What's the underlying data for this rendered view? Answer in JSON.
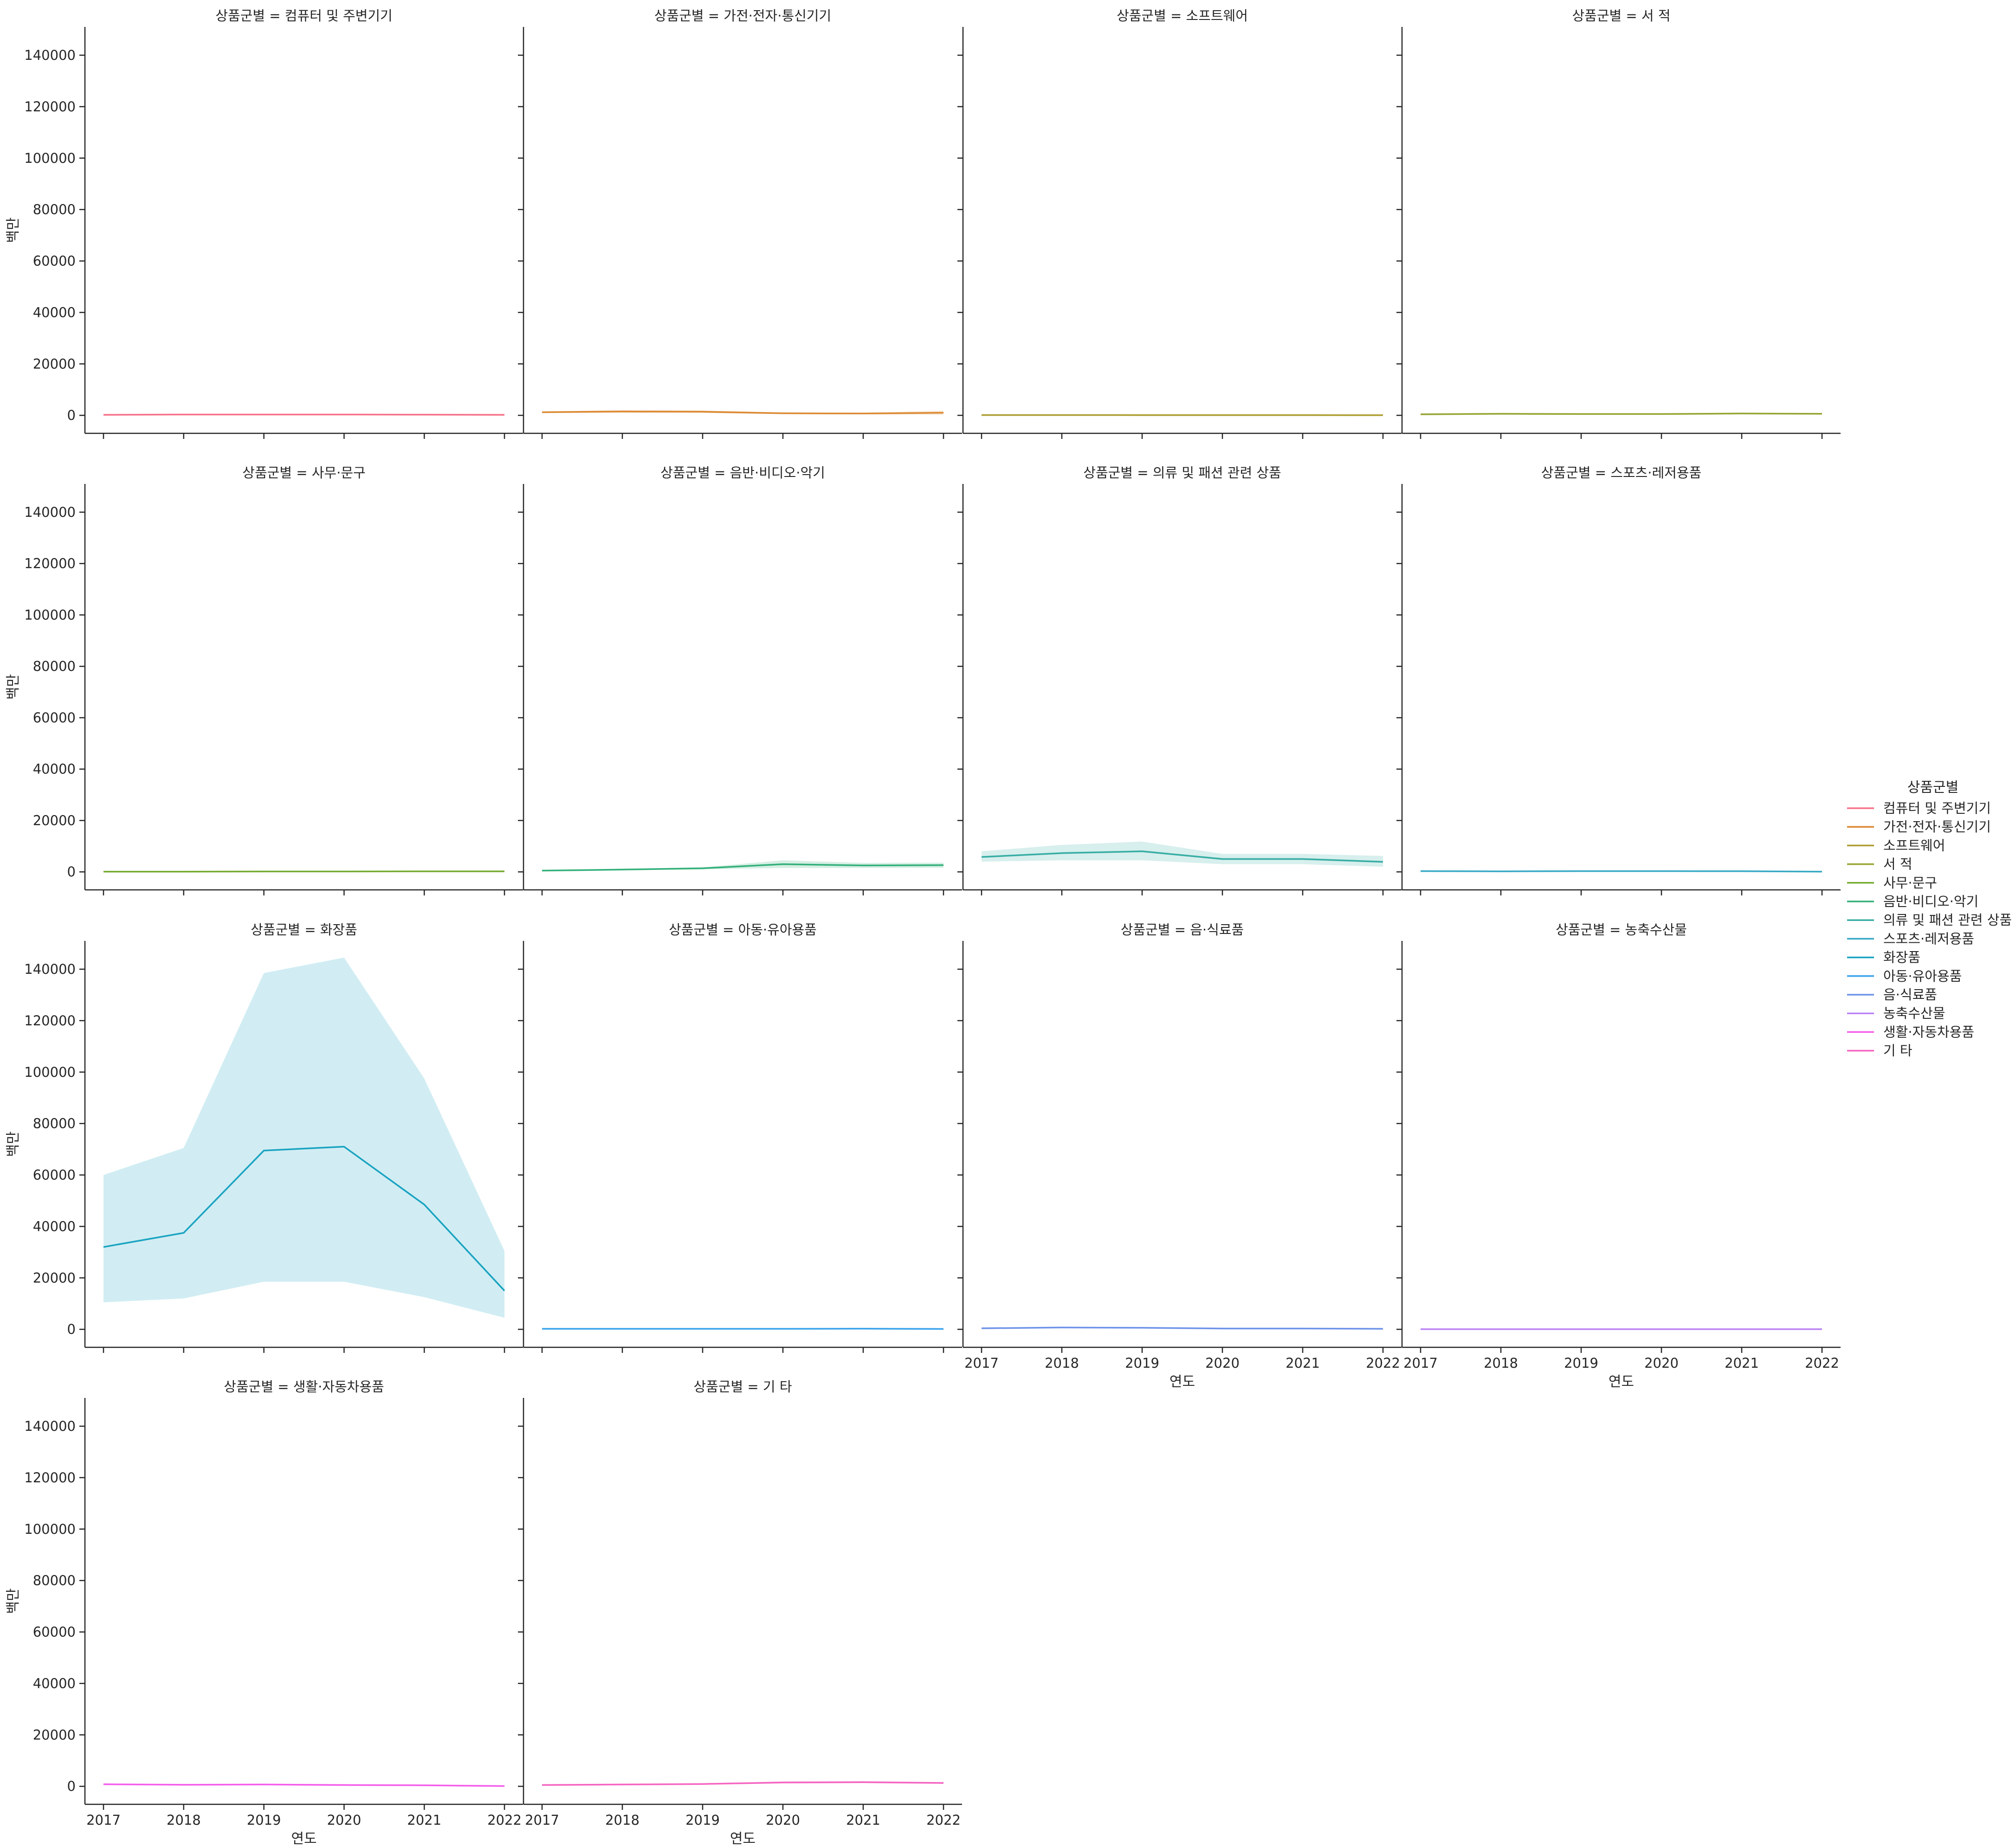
{
  "chart_data": {
    "type": "line",
    "facet_title_template": "상품군별 = {name}",
    "x_label": "연도",
    "y_label": "백만",
    "x_ticks": [
      2017,
      2018,
      2019,
      2020,
      2021,
      2022
    ],
    "y_ticks": [
      0,
      20000,
      40000,
      60000,
      80000,
      100000,
      120000,
      140000
    ],
    "ylim": [
      -7000,
      151000
    ],
    "xlim": [
      2016.75,
      2022.25
    ],
    "grid": false,
    "legend": {
      "title": "상품군별",
      "placement": "right"
    },
    "x": [
      2017,
      2018,
      2019,
      2020,
      2021,
      2022
    ],
    "series": [
      {
        "name": "컴퓨터 및 주변기기",
        "color": "#f77189",
        "values": [
          200,
          300,
          300,
          300,
          250,
          200
        ],
        "ci_low": [
          150,
          200,
          200,
          200,
          200,
          150
        ],
        "ci_high": [
          250,
          400,
          400,
          400,
          300,
          250
        ]
      },
      {
        "name": "가전·전자·통신기기",
        "color": "#dc8932",
        "values": [
          1200,
          1500,
          1400,
          800,
          700,
          1000
        ],
        "ci_low": [
          900,
          900,
          900,
          500,
          400,
          200
        ],
        "ci_high": [
          1500,
          2000,
          1900,
          1100,
          1000,
          1800
        ]
      },
      {
        "name": "소프트웨어",
        "color": "#ae9d31",
        "values": [
          100,
          100,
          80,
          80,
          80,
          60
        ],
        "ci_low": [
          50,
          50,
          40,
          40,
          40,
          30
        ],
        "ci_high": [
          150,
          150,
          120,
          120,
          120,
          90
        ]
      },
      {
        "name": "서 적",
        "color": "#97a431",
        "values": [
          400,
          600,
          500,
          500,
          700,
          600
        ],
        "ci_low": [
          300,
          500,
          400,
          400,
          500,
          400
        ],
        "ci_high": [
          500,
          700,
          600,
          600,
          900,
          800
        ]
      },
      {
        "name": "사무·문구",
        "color": "#77ab31",
        "values": [
          100,
          100,
          150,
          150,
          200,
          200
        ],
        "ci_low": [
          50,
          50,
          100,
          100,
          150,
          150
        ],
        "ci_high": [
          150,
          150,
          200,
          200,
          250,
          250
        ]
      },
      {
        "name": "음반·비디오·악기",
        "color": "#33b07a",
        "values": [
          500,
          900,
          1400,
          3000,
          2500,
          2600
        ],
        "ci_low": [
          400,
          700,
          1000,
          1500,
          1500,
          1600
        ],
        "ci_high": [
          600,
          1100,
          1800,
          4500,
          3500,
          3600
        ]
      },
      {
        "name": "의류 및 패션 관련 상품",
        "color": "#36ada4",
        "values": [
          5800,
          7300,
          8000,
          5000,
          5000,
          3900
        ],
        "ci_low": [
          4000,
          4500,
          4500,
          3000,
          3000,
          2000
        ],
        "ci_high": [
          8000,
          10500,
          11800,
          7000,
          7000,
          6200
        ]
      },
      {
        "name": "스포츠·레저용품",
        "color": "#38a9c5",
        "values": [
          300,
          200,
          300,
          300,
          250,
          100
        ],
        "ci_low": [
          200,
          100,
          200,
          200,
          150,
          50
        ],
        "ci_high": [
          400,
          300,
          400,
          400,
          350,
          150
        ]
      },
      {
        "name": "화장품",
        "color": "#1aa3c1",
        "values": [
          32000,
          37500,
          69500,
          71000,
          48500,
          15000
        ],
        "ci_low": [
          10500,
          12000,
          18500,
          18500,
          12500,
          4500
        ],
        "ci_high": [
          60000,
          70500,
          138500,
          144500,
          97500,
          30500
        ]
      },
      {
        "name": "아동·유아용품",
        "color": "#3ba3ec",
        "values": [
          200,
          200,
          200,
          200,
          250,
          150
        ],
        "ci_low": [
          150,
          150,
          150,
          150,
          200,
          100
        ],
        "ci_high": [
          250,
          250,
          250,
          250,
          300,
          200
        ]
      },
      {
        "name": "음·식료품",
        "color": "#6f93e9",
        "values": [
          400,
          700,
          600,
          300,
          300,
          200
        ],
        "ci_low": [
          300,
          600,
          500,
          250,
          250,
          150
        ],
        "ci_high": [
          500,
          800,
          700,
          350,
          350,
          250
        ]
      },
      {
        "name": "농축수산물",
        "color": "#bb83f4",
        "values": [
          50,
          50,
          50,
          50,
          50,
          50
        ],
        "ci_low": [
          20,
          20,
          20,
          20,
          20,
          20
        ],
        "ci_high": [
          80,
          80,
          80,
          80,
          80,
          80
        ]
      },
      {
        "name": "생활·자동차용품",
        "color": "#f45deb",
        "values": [
          800,
          600,
          700,
          500,
          400,
          100
        ],
        "ci_low": [
          600,
          400,
          500,
          350,
          250,
          50
        ],
        "ci_high": [
          1000,
          800,
          900,
          650,
          550,
          150
        ]
      },
      {
        "name": "기 타",
        "color": "#f564c1",
        "values": [
          500,
          700,
          900,
          1500,
          1600,
          1300
        ],
        "ci_low": [
          400,
          500,
          700,
          1100,
          1200,
          1000
        ],
        "ci_high": [
          600,
          900,
          1100,
          1900,
          2000,
          1600
        ]
      }
    ]
  }
}
